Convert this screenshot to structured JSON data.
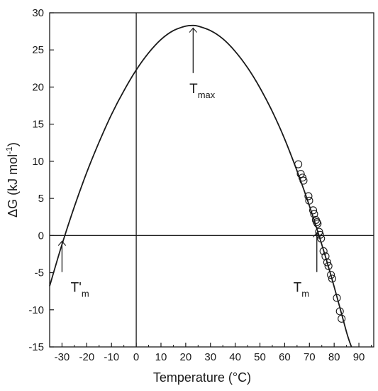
{
  "chart_data": {
    "type": "line",
    "title": "",
    "xlabel": "Temperature   (°C)",
    "ylabel_main": "ΔG  (kJ mol",
    "ylabel_sup": "-1",
    "ylabel_close": ")",
    "xlim": [
      -35,
      96
    ],
    "ylim": [
      -15,
      30
    ],
    "x_ticks": [
      -30,
      -20,
      -10,
      0,
      10,
      20,
      30,
      40,
      50,
      60,
      70,
      80,
      90
    ],
    "y_ticks": [
      -15,
      -10,
      -5,
      0,
      5,
      10,
      15,
      20,
      25,
      30
    ],
    "x_tick_labels": [
      "-30",
      "-20",
      "-10",
      "0",
      "10",
      "20",
      "30",
      "40",
      "50",
      "60",
      "70",
      "80",
      "90"
    ],
    "y_tick_labels": [
      "-15",
      "-10",
      "-5",
      "0",
      "5",
      "10",
      "15",
      "20",
      "25",
      "30"
    ],
    "grid": false,
    "reference_lines": {
      "x": 0,
      "y": 0
    },
    "curve": {
      "x": [
        -35,
        -30,
        -25,
        -20,
        -15,
        -10,
        -5,
        0,
        5,
        10,
        15,
        20,
        23,
        25,
        30,
        35,
        40,
        45,
        50,
        55,
        60,
        65,
        70,
        75,
        80,
        85,
        87
      ],
      "y": [
        -6.8,
        -1.2,
        3.9,
        8.5,
        12.6,
        16.3,
        19.5,
        22.3,
        24.6,
        26.4,
        27.6,
        28.2,
        28.3,
        28.2,
        27.6,
        26.5,
        24.8,
        22.6,
        19.9,
        16.7,
        13.0,
        8.7,
        4.0,
        -1.2,
        -6.9,
        -13.0,
        -15.0
      ]
    },
    "points": [
      {
        "x": 65.5,
        "y": 9.6
      },
      {
        "x": 66.5,
        "y": 8.3
      },
      {
        "x": 67.2,
        "y": 7.8
      },
      {
        "x": 67.6,
        "y": 7.4
      },
      {
        "x": 69.6,
        "y": 5.3
      },
      {
        "x": 69.9,
        "y": 4.7
      },
      {
        "x": 71.5,
        "y": 3.4
      },
      {
        "x": 71.9,
        "y": 2.9
      },
      {
        "x": 72.6,
        "y": 2.1
      },
      {
        "x": 73.0,
        "y": 1.8
      },
      {
        "x": 73.3,
        "y": 1.6
      },
      {
        "x": 73.9,
        "y": 0.5
      },
      {
        "x": 74.3,
        "y": 0.1
      },
      {
        "x": 74.7,
        "y": -0.4
      },
      {
        "x": 75.7,
        "y": -2.1
      },
      {
        "x": 76.5,
        "y": -2.8
      },
      {
        "x": 77.2,
        "y": -3.6
      },
      {
        "x": 77.7,
        "y": -4.1
      },
      {
        "x": 78.7,
        "y": -5.3
      },
      {
        "x": 79.2,
        "y": -5.8
      },
      {
        "x": 81.1,
        "y": -8.4
      },
      {
        "x": 82.3,
        "y": -10.2
      },
      {
        "x": 83.0,
        "y": -11.2
      }
    ],
    "annotations": [
      {
        "main": "T",
        "sub": "max",
        "target_x": 23,
        "target_y": 28.2,
        "label_x": 21.5,
        "label_y": 19.2
      },
      {
        "main": "T'",
        "sub": "m",
        "target_x": -30,
        "target_y": -0.6,
        "label_x": -26.5,
        "label_y": -7.6
      },
      {
        "main": "T",
        "sub": "m",
        "target_x": 73,
        "target_y": 0.6,
        "label_x": 63.5,
        "label_y": -7.6
      }
    ]
  }
}
